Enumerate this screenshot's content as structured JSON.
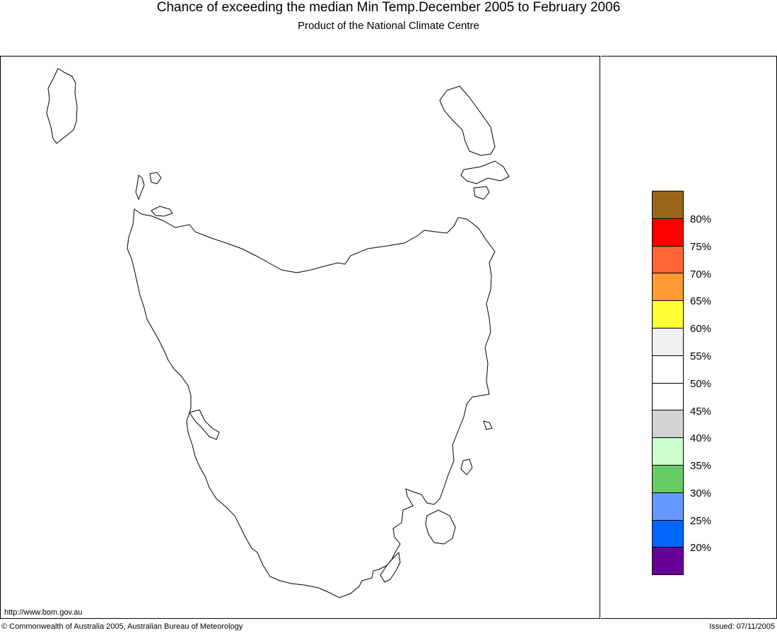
{
  "title": "Chance of exceeding the median Min Temp.December 2005 to February 2006",
  "subtitle": "Product of the National Climate Centre",
  "url": "http://www.bom.gov.au",
  "copyright": "© Commonwealth of Australia 2005, Australian Bureau of Meteorology",
  "issued": "Issued: 07/11/2005",
  "legend": {
    "swatches": [
      {
        "color": "#996619"
      },
      {
        "color": "#ff0000"
      },
      {
        "color": "#ff6633"
      },
      {
        "color": "#ff9933"
      },
      {
        "color": "#ffff33"
      },
      {
        "color": "#f0f0f0"
      },
      {
        "color": "#ffffff"
      },
      {
        "color": "#ffffff"
      },
      {
        "color": "#d3d3d3"
      },
      {
        "color": "#ccffcc"
      },
      {
        "color": "#66cc66"
      },
      {
        "color": "#6699ff"
      },
      {
        "color": "#0066ff"
      },
      {
        "color": "#660099"
      }
    ],
    "labels": [
      "80%",
      "75%",
      "70%",
      "65%",
      "60%",
      "55%",
      "50%",
      "45%",
      "40%",
      "35%",
      "30%",
      "25%",
      "20%"
    ]
  }
}
